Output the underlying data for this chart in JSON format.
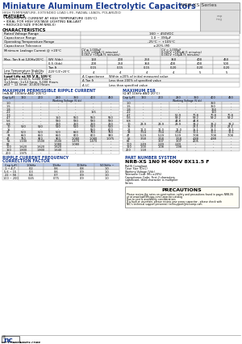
{
  "title": "Miniature Aluminum Electrolytic Capacitors",
  "series": "NRB-XS Series",
  "subtitle": "HIGH TEMPERATURE, EXTENDED LOAD LIFE, RADIAL LEADS, POLARIZED",
  "features_title": "FEATURES",
  "features": [
    "HIGH RIPPLE CURRENT AT HIGH TEMPERATURE (105°C)",
    "IDEAL FOR HIGH VOLTAGE LIGHTING BALLAST",
    "REDUCED SIZE (FROM NRB-X)"
  ],
  "characteristics_title": "CHARACTERISTICS",
  "char_rows": [
    [
      "Rated Voltage Range",
      "160 ~ 450VDC"
    ],
    [
      "Capacitance Range",
      "1.0 ~ 390μF"
    ],
    [
      "Operating Temperature Range",
      "-25°C ~ +105°C"
    ],
    [
      "Capacitance Tolerance",
      "±20% (M)"
    ]
  ],
  "leakage_label": "Minimum Leakage Current @ +20°C",
  "leakage_cv_low_lines": [
    "CV ≤ 1,000μF",
    "0.1CV +40μA (1 minutes)",
    "0.06CV +10μA (5 minutes)"
  ],
  "leakage_cv_high_lines": [
    "CV > 1,000μF",
    "0.04CV +100μA (1 minutes)",
    "0.06CV +10μA (5 minutes)"
  ],
  "tan_rows": [
    [
      "Max. Tan δ at 120Hz/20°C",
      "WV (Vdc)",
      "160",
      "200",
      "250",
      "350",
      "400",
      "450"
    ],
    [
      "",
      "0.5 (Vdc)",
      "200",
      "250",
      "350",
      "400",
      "400",
      "500"
    ],
    [
      "",
      "Tan δ",
      "0.15",
      "0.15",
      "0.15",
      "0.20",
      "0.20",
      "0.20"
    ]
  ],
  "low_temp_label": "Low Temperature Stability\nImpedance Ratio @ 1kHz",
  "low_temp_val": "Z-20°C/Z+20°C",
  "low_temp_vals": [
    "4",
    "4",
    "4",
    "4",
    "5",
    "5"
  ],
  "load_life_lines": [
    "Load Life at 95 V B, 105°C",
    "φ1.5mm: 1×10.5, 5,000 Hours",
    "1×12mm: 1×12.5mm, 5,000 Hours",
    "ø63 ~ 12.5mm: 10,000 Hours"
  ],
  "delta_rows": [
    [
      "Δ Capacitance",
      "Within ±20% of initial measured value"
    ],
    [
      "Δ Tan δ",
      "Less than 200% of specified value"
    ],
    [
      "Δ LC",
      "Less than specified value"
    ]
  ],
  "ripple_title": "MAXIMUM PERMISSIBLE RIPPLE CURRENT",
  "ripple_subtitle": "(mA AT 100kHz AND 105°C)",
  "esr_title": "MAXIMUM ESR",
  "esr_subtitle": "(Ω AT 10kHz AND 20°C)",
  "vol_headers": [
    "160",
    "200",
    "250",
    "350",
    "400",
    "450"
  ],
  "ripple_rows": [
    [
      "1.0",
      "-",
      "-",
      "-",
      "-",
      "-",
      "-"
    ],
    [
      "1.5",
      "-",
      "-",
      "-",
      "-",
      "-",
      "-"
    ],
    [
      "1.8",
      "-",
      "-",
      "-",
      "-",
      "-",
      "-"
    ],
    [
      "2.2",
      "-",
      "-",
      "-",
      "-",
      "155",
      "-"
    ],
    [
      "3.3",
      "-",
      "-",
      "-",
      "-",
      "-",
      "-"
    ],
    [
      "4.7",
      "-",
      "-",
      "150",
      "550",
      "550",
      "550"
    ],
    [
      "5.6",
      "-",
      "-",
      "580",
      "580",
      "580",
      "580"
    ],
    [
      "6.8",
      "-",
      "-",
      "250",
      "250",
      "250",
      "250"
    ],
    [
      "10",
      "520",
      "520",
      "520",
      "510",
      "510",
      "510"
    ],
    [
      "15",
      "-",
      "-",
      "-",
      "-",
      "550",
      "600"
    ],
    [
      "22",
      "500",
      "500",
      "500",
      "650",
      "750",
      "750"
    ],
    [
      "33",
      "650",
      "650",
      "650",
      "800",
      "800",
      "940"
    ],
    [
      "47",
      "750",
      "900",
      "900",
      "1,080",
      "1,080",
      "1,075"
    ],
    [
      "56",
      "1,100",
      "1,500",
      "1,500",
      "1,470",
      "1,470",
      "-"
    ],
    [
      "82",
      "-",
      "-",
      "1,080",
      "1,080",
      "-",
      "-"
    ],
    [
      "100",
      "1,620",
      "1,620",
      "1,620",
      "-",
      "-",
      "-"
    ],
    [
      "150",
      "1,800",
      "1,800",
      "1,640",
      "-",
      "-",
      "-"
    ],
    [
      "200",
      "1,975",
      "-",
      "-",
      "-",
      "-",
      "-"
    ]
  ],
  "esr_rows": [
    [
      "1.0",
      "-",
      "-",
      "-",
      "-",
      "350",
      "-"
    ],
    [
      "1.5",
      "-",
      "-",
      "-",
      "-",
      "350",
      "-"
    ],
    [
      "1.8",
      "-",
      "-",
      "-",
      "-",
      "164",
      "-"
    ],
    [
      "2.2",
      "-",
      "-",
      "-",
      "-",
      "150",
      "-"
    ],
    [
      "4.7",
      "-",
      "-",
      "50.9",
      "70.8",
      "70.8",
      "70.8"
    ],
    [
      "5.6",
      "-",
      "-",
      "59.2",
      "59.2",
      "59.2",
      "59.2"
    ],
    [
      "6.8",
      "-",
      "-",
      "44.8",
      "44.8",
      "-",
      "-"
    ],
    [
      "10",
      "23.9",
      "23.9",
      "23.9",
      "33.2",
      "33.2",
      "33.2"
    ],
    [
      "15",
      "-",
      "-",
      "-",
      "22.1",
      "22.1",
      "22.1"
    ],
    [
      "22",
      "11.0",
      "11.0",
      "11.0",
      "15.1",
      "15.1",
      "15.1"
    ],
    [
      "33",
      "7.54",
      "7.54",
      "7.54",
      "10.1",
      "10.1",
      "10.1"
    ],
    [
      "47",
      "5.29",
      "5.29",
      "5.29",
      "7.08",
      "7.08",
      "7.08"
    ],
    [
      "56",
      "3.58",
      "3.58",
      "3.58",
      "4.88",
      "4.88",
      "-"
    ],
    [
      "82",
      "-",
      "3.07",
      "3.07",
      "4.05",
      "-",
      "-"
    ],
    [
      "100",
      "2.49",
      "2.49",
      "2.49",
      "-",
      "-",
      "-"
    ],
    [
      "150",
      "1.00",
      "1.08",
      "1.98",
      "-",
      "-",
      "-"
    ],
    [
      "200",
      "1.18",
      "-",
      "-",
      "-",
      "-",
      "-"
    ]
  ],
  "part_number_title": "PART NUMBER SYSTEM",
  "part_number_example": "NRB-XS 1N0 M 400V 8X11.5 F",
  "part_number_lines": [
    [
      "RoHS Compliant",
      0.97
    ],
    [
      "Case Size (D×L)",
      0.84
    ],
    [
      "Working Voltage (Vdc)",
      0.72
    ],
    [
      "Tolerance Code (M=±20%)",
      0.6
    ],
    [
      "Capacitance Code: First 2 characters",
      0.47
    ],
    [
      "significant, third character is multiplier",
      0.4
    ],
    [
      "Series",
      0.18
    ]
  ],
  "freq_title": "RIPPLE CURRENT FREQUENCY",
  "freq_subtitle": "CORRECTION FACTOR",
  "freq_header": [
    "Cap (μF)",
    "1.0kHz",
    "10kHz",
    "100kHz",
    "500kHz ~"
  ],
  "freq_rows": [
    [
      "1 ~ 4.7",
      "0.2",
      "0.6",
      "0.8",
      "1.0"
    ],
    [
      "5.6 ~ 15",
      "0.3",
      "0.6",
      "0.9",
      "1.0"
    ],
    [
      "22 ~ 56",
      "0.4",
      "0.7",
      "0.9",
      "1.0"
    ],
    [
      "100 ~ 200",
      "0.45",
      "0.75",
      "0.9",
      "1.0"
    ]
  ],
  "precautions_title": "PRECAUTIONS",
  "precautions_lines": [
    "Please review the notes on construction, safety and precautions found in pages NRB-XS",
    "or at www.lowESRcaps.com/Capacitor-catalog",
    "Due to cost & availability considerations",
    "If a fault or uncertain, please review your power capacitor - please check with",
    "NIC's technical support personnel: techsupport@niccomp.com"
  ],
  "footer_left": "NIC COMPONENTS CORP.",
  "footer_right": "www.niccomp.com | www.lowESR.com | www.NJpassives.com | www.SMTmagnetics.com",
  "blue": "#1a3c8f",
  "light_blue_hdr": "#b8c8e8",
  "border": "#999999",
  "alt_row": "#eeeeee",
  "white": "#ffffff"
}
